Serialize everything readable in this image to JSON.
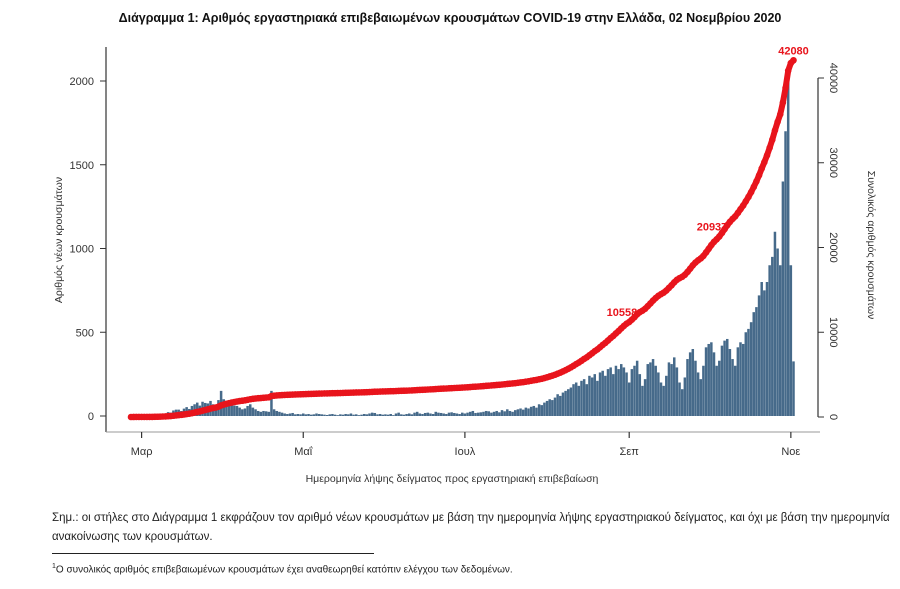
{
  "chart_data": {
    "type": "bar+line",
    "title": "Διάγραμμα 1: Αριθμός εργαστηριακά επιβεβαιωμένων κρουσμάτων COVID-19 στην Ελλάδα, 02 Νοεμβρίου 2020",
    "xlabel": "Ημερομηνία λήψης δείγματος προς εργαστηριακή επιβεβαίωση",
    "ylabel_left": "Αριθμός νέων κρουσμάτων",
    "ylabel_right": "Συνολικός αριθμός κρουσμάτων",
    "start_date": "2020-02-26",
    "end_date": "2020-11-02",
    "x_ticks": [
      {
        "date": "2020-03-01",
        "label": "Μαρ"
      },
      {
        "date": "2020-05-01",
        "label": "Μαΐ"
      },
      {
        "date": "2020-07-01",
        "label": "Ιουλ"
      },
      {
        "date": "2020-09-01",
        "label": "Σεπ"
      },
      {
        "date": "2020-11-01",
        "label": "Νοε"
      }
    ],
    "ylim_left": [
      0,
      2000
    ],
    "yticks_left": [
      "0",
      "500",
      "1000",
      "1500",
      "2000"
    ],
    "ylim_right": [
      0,
      40000
    ],
    "yticks_right": [
      "0",
      "10000",
      "20000",
      "30000",
      "40000"
    ],
    "bar_color": "#466a8a",
    "line_color": "#e8141c",
    "daily_new_cases": [
      1,
      1,
      1,
      0,
      2,
      2,
      0,
      2,
      4,
      10,
      7,
      14,
      15,
      12,
      23,
      20,
      33,
      38,
      38,
      30,
      44,
      53,
      42,
      60,
      70,
      80,
      62,
      85,
      78,
      75,
      90,
      70,
      60,
      95,
      150,
      100,
      90,
      80,
      70,
      62,
      60,
      50,
      40,
      45,
      60,
      70,
      50,
      40,
      30,
      25,
      30,
      28,
      25,
      150,
      40,
      30,
      25,
      20,
      15,
      12,
      15,
      18,
      10,
      12,
      10,
      15,
      10,
      12,
      8,
      10,
      15,
      12,
      10,
      8,
      6,
      10,
      12,
      8,
      5,
      10,
      8,
      12,
      10,
      15,
      8,
      10,
      5,
      8,
      12,
      10,
      15,
      20,
      18,
      10,
      12,
      8,
      10,
      8,
      12,
      5,
      15,
      20,
      10,
      8,
      12,
      15,
      10,
      20,
      25,
      15,
      12,
      18,
      20,
      15,
      12,
      25,
      20,
      18,
      15,
      12,
      20,
      22,
      18,
      15,
      12,
      20,
      15,
      20,
      25,
      30,
      18,
      20,
      22,
      25,
      30,
      28,
      20,
      25,
      30,
      22,
      35,
      28,
      40,
      30,
      25,
      35,
      40,
      45,
      38,
      50,
      45,
      55,
      60,
      50,
      70,
      65,
      80,
      90,
      100,
      95,
      110,
      130,
      120,
      140,
      150,
      160,
      170,
      190,
      200,
      180,
      210,
      220,
      190,
      240,
      230,
      250,
      210,
      260,
      270,
      240,
      280,
      290,
      250,
      300,
      280,
      310,
      290,
      260,
      200,
      280,
      300,
      330,
      250,
      180,
      220,
      310,
      320,
      340,
      300,
      260,
      200,
      180,
      240,
      320,
      310,
      350,
      290,
      200,
      160,
      230,
      340,
      380,
      400,
      330,
      260,
      220,
      300,
      410,
      430,
      440,
      380,
      300,
      330,
      420,
      450,
      460,
      400,
      340,
      300,
      410,
      440,
      430,
      500,
      520,
      560,
      620,
      650,
      720,
      800,
      750,
      800,
      900,
      950,
      1100,
      1000,
      900,
      1400,
      1700,
      2050,
      900,
      326
    ],
    "annotations": [
      {
        "date": "2020-09-01",
        "label": "10558"
      },
      {
        "date": "2020-10-05",
        "label": "20937"
      },
      {
        "date": "2020-11-02",
        "label": "42080"
      }
    ]
  },
  "note": "Σημ.: οι στήλες στο Διάγραμμα 1 εκφράζουν τον αριθμό νέων κρουσμάτων με βάση την ημερομηνία λήψης εργαστηριακού δείγματος, και όχι με βάση την ημερομηνία ανακοίνωσης των κρουσμάτων.",
  "footnote": {
    "marker": "1",
    "text": "Ο συνολικός αριθμός επιβεβαιωμένων κρουσμάτων έχει αναθεωρηθεί κατόπιν ελέγχου των δεδομένων."
  }
}
